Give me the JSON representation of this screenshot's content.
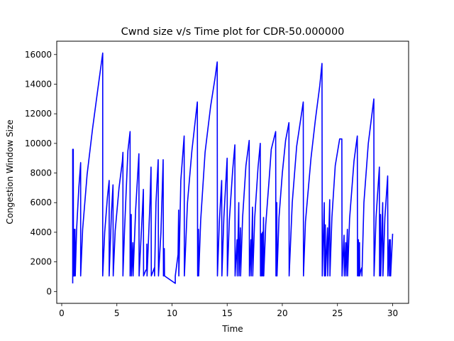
{
  "chart_data": {
    "type": "line",
    "title": "Cwnd size v/s Time plot for CDR-50.000000",
    "xlabel": "Time",
    "ylabel": "Congestion Window Size",
    "xlim": [
      -0.45,
      31.45
    ],
    "ylim": [
      -800,
      16900
    ],
    "xticks": [
      0,
      5,
      10,
      15,
      20,
      25,
      30
    ],
    "yticks": [
      0,
      2000,
      4000,
      6000,
      8000,
      10000,
      12000,
      14000,
      16000
    ],
    "grid": false,
    "series": [
      {
        "color": "#0000ff",
        "points": [
          [
            1.0,
            550
          ],
          [
            1.0,
            9600
          ],
          [
            1.05,
            9600
          ],
          [
            1.07,
            1050
          ],
          [
            1.12,
            4200
          ],
          [
            1.14,
            1050
          ],
          [
            1.2,
            4200
          ],
          [
            1.23,
            1050
          ],
          [
            1.35,
            4200
          ],
          [
            1.55,
            7000
          ],
          [
            1.72,
            8700
          ],
          [
            1.72,
            1050
          ],
          [
            1.9,
            4200
          ],
          [
            2.3,
            7900
          ],
          [
            2.8,
            11000
          ],
          [
            3.3,
            13800
          ],
          [
            3.72,
            16100
          ],
          [
            3.72,
            1050
          ],
          [
            3.9,
            4000
          ],
          [
            4.15,
            6400
          ],
          [
            4.3,
            7500
          ],
          [
            4.3,
            1050
          ],
          [
            4.5,
            5200
          ],
          [
            4.65,
            7200
          ],
          [
            4.67,
            1050
          ],
          [
            4.85,
            4100
          ],
          [
            5.2,
            7000
          ],
          [
            5.5,
            8800
          ],
          [
            5.55,
            9400
          ],
          [
            5.55,
            1050
          ],
          [
            5.7,
            4200
          ],
          [
            6.0,
            9500
          ],
          [
            6.2,
            10800
          ],
          [
            6.2,
            1050
          ],
          [
            6.3,
            5200
          ],
          [
            6.32,
            1050
          ],
          [
            6.45,
            3300
          ],
          [
            6.47,
            1050
          ],
          [
            6.7,
            5500
          ],
          [
            7.0,
            9300
          ],
          [
            7.02,
            1050
          ],
          [
            7.3,
            5200
          ],
          [
            7.4,
            6900
          ],
          [
            7.42,
            1050
          ],
          [
            7.6,
            1400
          ],
          [
            7.7,
            1500
          ],
          [
            7.72,
            3200
          ],
          [
            7.74,
            1050
          ],
          [
            8.0,
            6000
          ],
          [
            8.1,
            8400
          ],
          [
            8.12,
            1050
          ],
          [
            8.3,
            1400
          ],
          [
            8.4,
            1600
          ],
          [
            8.42,
            1050
          ],
          [
            8.55,
            6000
          ],
          [
            8.75,
            8900
          ],
          [
            8.77,
            1050
          ],
          [
            9.0,
            4000
          ],
          [
            9.2,
            8900
          ],
          [
            9.22,
            1050
          ],
          [
            9.3,
            2900
          ],
          [
            9.32,
            1050
          ],
          [
            10.3,
            550
          ],
          [
            10.3,
            1050
          ],
          [
            10.55,
            2500
          ],
          [
            10.6,
            5500
          ],
          [
            10.62,
            1050
          ],
          [
            10.8,
            7500
          ],
          [
            11.1,
            10500
          ],
          [
            11.12,
            1050
          ],
          [
            11.4,
            6000
          ],
          [
            11.8,
            9500
          ],
          [
            12.3,
            12800
          ],
          [
            12.32,
            1050
          ],
          [
            12.4,
            4200
          ],
          [
            12.42,
            1050
          ],
          [
            12.6,
            4800
          ],
          [
            13.0,
            9400
          ],
          [
            13.5,
            12500
          ],
          [
            13.9,
            14400
          ],
          [
            14.1,
            15500
          ],
          [
            14.12,
            1050
          ],
          [
            14.3,
            4800
          ],
          [
            14.5,
            7500
          ],
          [
            14.52,
            1050
          ],
          [
            14.7,
            5000
          ],
          [
            15.0,
            9000
          ],
          [
            15.02,
            1050
          ],
          [
            15.2,
            4800
          ],
          [
            15.5,
            8200
          ],
          [
            15.7,
            9900
          ],
          [
            15.72,
            1050
          ],
          [
            15.9,
            3500
          ],
          [
            15.92,
            1050
          ],
          [
            16.05,
            6000
          ],
          [
            16.07,
            1050
          ],
          [
            16.2,
            4300
          ],
          [
            16.22,
            1050
          ],
          [
            16.4,
            5000
          ],
          [
            16.7,
            8500
          ],
          [
            17.0,
            10200
          ],
          [
            17.02,
            1050
          ],
          [
            17.15,
            3500
          ],
          [
            17.17,
            1050
          ],
          [
            17.3,
            5700
          ],
          [
            17.32,
            1050
          ],
          [
            17.5,
            5000
          ],
          [
            17.8,
            8400
          ],
          [
            18.0,
            10000
          ],
          [
            18.02,
            1050
          ],
          [
            18.1,
            3900
          ],
          [
            18.12,
            1050
          ],
          [
            18.2,
            4000
          ],
          [
            18.22,
            1050
          ],
          [
            18.3,
            5000
          ],
          [
            18.32,
            1050
          ],
          [
            18.5,
            4500
          ],
          [
            18.8,
            7500
          ],
          [
            19.0,
            9600
          ],
          [
            19.4,
            10800
          ],
          [
            19.42,
            1050
          ],
          [
            19.5,
            6000
          ],
          [
            19.52,
            1050
          ],
          [
            19.7,
            5000
          ],
          [
            20.0,
            8000
          ],
          [
            20.3,
            10200
          ],
          [
            20.6,
            11400
          ],
          [
            20.62,
            1050
          ],
          [
            20.9,
            6000
          ],
          [
            21.3,
            9800
          ],
          [
            21.9,
            12800
          ],
          [
            21.92,
            1050
          ],
          [
            22.1,
            4700
          ],
          [
            22.6,
            9000
          ],
          [
            23.0,
            11600
          ],
          [
            23.4,
            13900
          ],
          [
            23.6,
            15400
          ],
          [
            23.62,
            1050
          ],
          [
            23.8,
            6000
          ],
          [
            23.82,
            1050
          ],
          [
            23.9,
            4500
          ],
          [
            23.92,
            1050
          ],
          [
            24.1,
            4300
          ],
          [
            24.12,
            1050
          ],
          [
            24.3,
            6200
          ],
          [
            24.32,
            1050
          ],
          [
            24.5,
            5000
          ],
          [
            24.8,
            8500
          ],
          [
            25.2,
            10300
          ],
          [
            25.4,
            10300
          ],
          [
            25.42,
            1050
          ],
          [
            25.6,
            3800
          ],
          [
            25.62,
            1050
          ],
          [
            25.75,
            3300
          ],
          [
            25.77,
            1050
          ],
          [
            25.9,
            4200
          ],
          [
            25.92,
            1050
          ],
          [
            26.1,
            4900
          ],
          [
            26.5,
            8800
          ],
          [
            26.8,
            10500
          ],
          [
            26.82,
            1050
          ],
          [
            26.9,
            3500
          ],
          [
            26.92,
            1050
          ],
          [
            27.0,
            3300
          ],
          [
            27.02,
            1050
          ],
          [
            27.1,
            1400
          ],
          [
            27.2,
            1600
          ],
          [
            27.22,
            1050
          ],
          [
            27.4,
            6000
          ],
          [
            27.8,
            10000
          ],
          [
            28.3,
            13000
          ],
          [
            28.32,
            1050
          ],
          [
            28.5,
            5000
          ],
          [
            28.8,
            8400
          ],
          [
            28.82,
            1050
          ],
          [
            28.9,
            5200
          ],
          [
            28.92,
            1050
          ],
          [
            29.1,
            6000
          ],
          [
            29.12,
            1050
          ],
          [
            29.3,
            5000
          ],
          [
            29.55,
            7800
          ],
          [
            29.57,
            1050
          ],
          [
            29.7,
            3500
          ],
          [
            29.72,
            1050
          ],
          [
            29.8,
            3500
          ],
          [
            29.82,
            1050
          ],
          [
            30.0,
            3900
          ]
        ]
      }
    ]
  }
}
